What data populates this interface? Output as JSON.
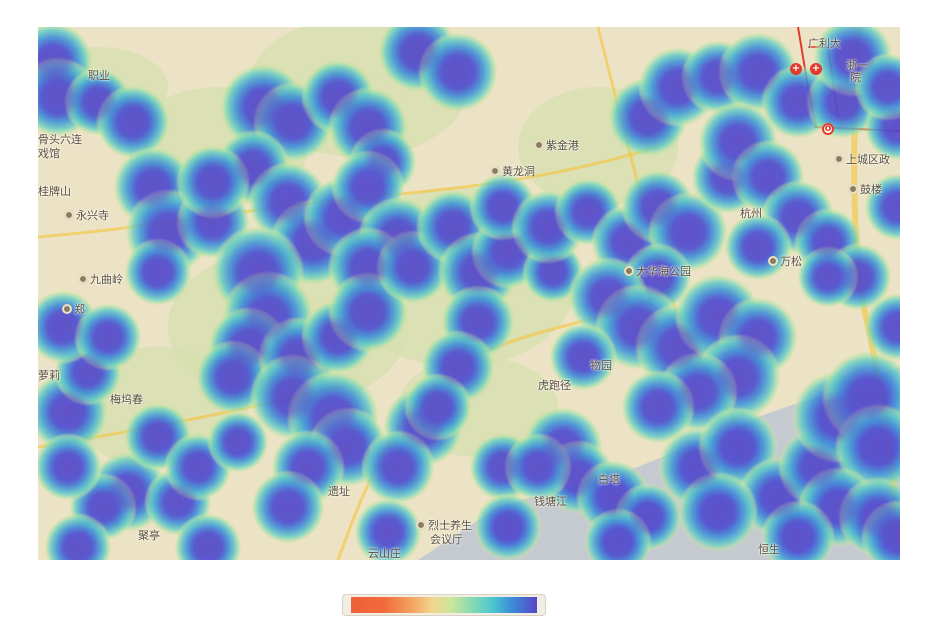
{
  "map": {
    "place_labels": [
      {
        "text": "广利大"
      },
      {
        "text": "职业"
      },
      {
        "text": "浙一"
      },
      {
        "text": "院"
      },
      {
        "text": "骨头六连"
      },
      {
        "text": "戏馆"
      },
      {
        "text": "桂牌山"
      },
      {
        "text": "永兴寺"
      },
      {
        "text": "九曲岭"
      },
      {
        "text": "郑"
      },
      {
        "text": "梅坞春"
      },
      {
        "text": "黄龙洞"
      },
      {
        "text": "紫金港"
      },
      {
        "text": "大华海公园"
      },
      {
        "text": "上城区政"
      },
      {
        "text": "鼓楼"
      },
      {
        "text": "万松"
      },
      {
        "text": "杭州"
      },
      {
        "text": "遗址"
      },
      {
        "text": "烈士养生"
      },
      {
        "text": "会议厅"
      },
      {
        "text": "云山庄"
      },
      {
        "text": "钱塘江"
      },
      {
        "text": "恒生"
      },
      {
        "text": "萝莉"
      },
      {
        "text": "聚亭"
      },
      {
        "text": "白塔"
      },
      {
        "text": "虎跑径"
      },
      {
        "text": "物园"
      }
    ],
    "heat_color_scale": [
      "#f0603a",
      "#f3a160",
      "#f1d68f",
      "#c9e69a",
      "#8ddbb0",
      "#4ec7d0",
      "#3a8fd6",
      "#5746c9"
    ],
    "base_colors": {
      "land": "#ece3c6",
      "park": "#d7dfb0",
      "water": "#b8c2d4",
      "road": "#f4c74c",
      "metro": "#e03c2c"
    }
  },
  "legend": {
    "min_label": "",
    "max_label": ""
  }
}
